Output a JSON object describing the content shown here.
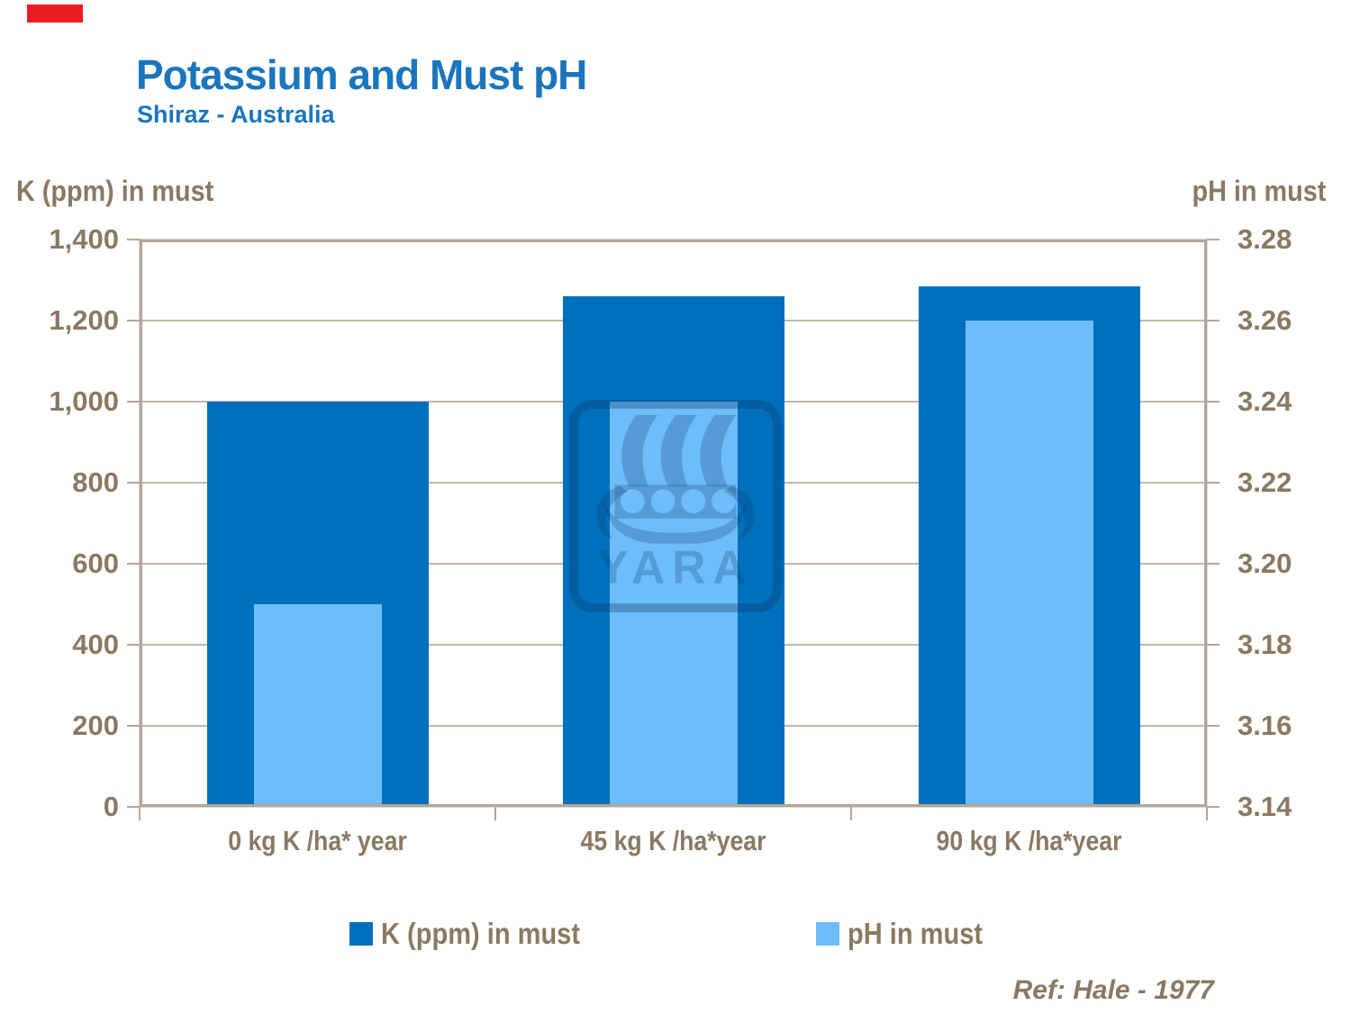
{
  "page": {
    "title": "Potassium and Must pH",
    "subtitle": "Shiraz - Australia",
    "ref_note": "Ref: Hale - 1977",
    "watermark_text": "YARA"
  },
  "chart_data": {
    "type": "bar",
    "title": "Potassium and Must pH",
    "subtitle": "Shiraz - Australia",
    "categories": [
      "0 kg K /ha* year",
      "45 kg K /ha*year",
      "90 kg K /ha*year"
    ],
    "series": [
      {
        "name": "K (ppm) in must",
        "axis": "left",
        "color": "#0070bd",
        "values": [
          1000,
          1260,
          1285
        ]
      },
      {
        "name": "pH in must",
        "axis": "right",
        "color": "#6fbcfa",
        "values": [
          3.19,
          3.24,
          3.26
        ]
      }
    ],
    "left_axis": {
      "label": "K (ppm) in must",
      "min": 0,
      "max": 1400,
      "step": 200,
      "tick_labels": [
        "1,400",
        "1,200",
        "1,000",
        "800",
        "600",
        "400",
        "200",
        "0"
      ]
    },
    "right_axis": {
      "label": "pH in must",
      "min": 3.14,
      "max": 3.28,
      "step": 0.02,
      "tick_labels": [
        "3.28",
        "3.26",
        "3.24",
        "3.22",
        "3.20",
        "3.18",
        "3.16",
        "3.14"
      ]
    },
    "grid": true,
    "legend": [
      "K (ppm) in must",
      "pH in must"
    ],
    "legend_position": "bottom",
    "annotation": "Ref: Hale - 1977"
  },
  "colors": {
    "title_blue": "#1b75bc",
    "axis_brown": "#8a7962",
    "k_bar": "#0070bd",
    "ph_bar": "#6fbcfa",
    "gridline": "#c2b7a8",
    "frame": "#b3a79a",
    "red_marker": "#ec1c24"
  }
}
